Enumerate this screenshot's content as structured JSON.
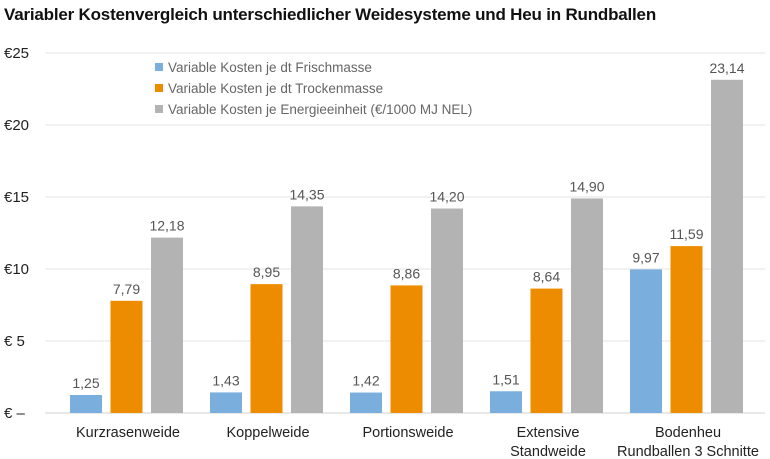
{
  "chart_data": {
    "type": "bar",
    "title": "Variabler Kostenvergleich unterschiedlicher Weidesysteme und Heu in Rundballen",
    "xlabel": "",
    "ylabel": "",
    "ylim": [
      0,
      25
    ],
    "yticks": [
      0,
      5,
      10,
      15,
      20,
      25
    ],
    "ytick_labels": [
      "€  –",
      "€  5",
      "€10",
      "€15",
      "€20",
      "€25"
    ],
    "grid": true,
    "legend_position": "top-center",
    "categories": [
      [
        "Kurzrasenweide"
      ],
      [
        "Koppelweide"
      ],
      [
        "Portionsweide"
      ],
      [
        "Extensive",
        "Standweide"
      ],
      [
        "Bodenheu",
        "Rundballen 3 Schnitte"
      ]
    ],
    "series": [
      {
        "name": "Variable Kosten je dt Frischmasse",
        "color": "#7aaedc",
        "values": [
          1.25,
          1.43,
          1.42,
          1.51,
          9.97
        ],
        "labels": [
          "1,25",
          "1,43",
          "1,42",
          "1,51",
          "9,97"
        ]
      },
      {
        "name": "Variable Kosten je dt Trockenmasse",
        "color": "#ee8c00",
        "values": [
          7.79,
          8.95,
          8.86,
          8.64,
          11.59
        ],
        "labels": [
          "7,79",
          "8,95",
          "8,86",
          "8,64",
          "11,59"
        ]
      },
      {
        "name": "Variable Kosten je Energieeinheit (€/1000 MJ NEL)",
        "color": "#b3b3b3",
        "values": [
          12.18,
          14.35,
          14.2,
          14.9,
          23.14
        ],
        "labels": [
          "12,18",
          "14,35",
          "14,20",
          "14,90",
          "23,14"
        ]
      }
    ]
  }
}
